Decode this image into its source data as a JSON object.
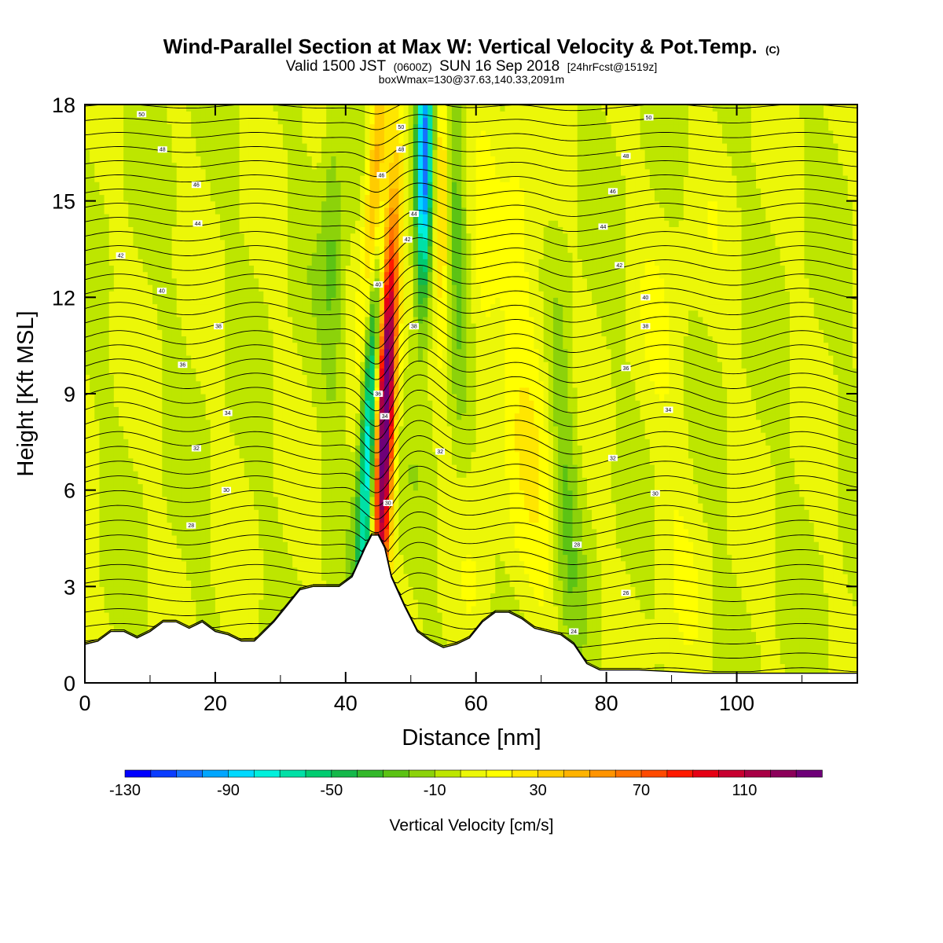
{
  "chart_data": {
    "type": "heatmap",
    "title": "Wind-Parallel Section at Max W: Vertical Velocity & Pot.Temp.",
    "title_suffix": "(C)",
    "subtitle_parts": [
      "Valid 1500 JST",
      "(0600Z)",
      "SUN 16 Sep 2018",
      "[24hrFcst@1519z]"
    ],
    "subtitle2": "boxWmax=130@37.63,140.33,2091m",
    "xlabel": "Distance [nm]",
    "ylabel": "Height [Kft MSL]",
    "xlim": [
      0,
      118.5
    ],
    "ylim": [
      0,
      18
    ],
    "x_ticks": [
      "0",
      "20",
      "40",
      "60",
      "80",
      "100"
    ],
    "x_tick_values": [
      0,
      20,
      40,
      60,
      80,
      100
    ],
    "y_ticks": [
      "0",
      "3",
      "6",
      "9",
      "12",
      "15",
      "18"
    ],
    "y_tick_values": [
      0,
      3,
      6,
      9,
      12,
      15,
      18
    ],
    "colorbar": {
      "title": "Vertical Velocity [cm/s]",
      "labels": [
        "-130",
        "-90",
        "-50",
        "-10",
        "30",
        "70",
        "110"
      ],
      "label_values": [
        -130,
        -90,
        -50,
        -10,
        30,
        70,
        110
      ],
      "min": -130,
      "max": 140,
      "step": 10,
      "colors": [
        "#0000ff",
        "#0a3cff",
        "#1473ff",
        "#00a6ff",
        "#00d9ff",
        "#00f0dc",
        "#00e0a6",
        "#00cc70",
        "#14b84a",
        "#33b82a",
        "#5cc314",
        "#8cd20a",
        "#bde600",
        "#ecf708",
        "#ffff00",
        "#ffe600",
        "#ffcc00",
        "#ffb300",
        "#ff9400",
        "#ff7300",
        "#ff4a00",
        "#ff1a00",
        "#e60014",
        "#c80030",
        "#a80045",
        "#8c005a",
        "#6e0078"
      ]
    },
    "terrain_kft": [
      [
        0,
        1.2
      ],
      [
        2,
        1.3
      ],
      [
        4,
        1.6
      ],
      [
        6,
        1.6
      ],
      [
        8,
        1.4
      ],
      [
        10,
        1.6
      ],
      [
        12,
        1.9
      ],
      [
        14,
        1.9
      ],
      [
        16,
        1.7
      ],
      [
        18,
        1.9
      ],
      [
        20,
        1.6
      ],
      [
        22,
        1.5
      ],
      [
        24,
        1.3
      ],
      [
        26,
        1.3
      ],
      [
        27,
        1.5
      ],
      [
        29,
        1.9
      ],
      [
        31,
        2.4
      ],
      [
        33,
        2.9
      ],
      [
        35,
        3.0
      ],
      [
        37,
        3.0
      ],
      [
        39,
        3.0
      ],
      [
        41,
        3.3
      ],
      [
        43,
        4.2
      ],
      [
        44,
        4.6
      ],
      [
        45,
        4.6
      ],
      [
        46,
        4.2
      ],
      [
        47,
        3.3
      ],
      [
        49,
        2.4
      ],
      [
        51,
        1.6
      ],
      [
        53,
        1.3
      ],
      [
        55,
        1.1
      ],
      [
        57,
        1.2
      ],
      [
        59,
        1.4
      ],
      [
        61,
        1.9
      ],
      [
        63,
        2.2
      ],
      [
        65,
        2.2
      ],
      [
        67,
        2.0
      ],
      [
        69,
        1.7
      ],
      [
        71,
        1.6
      ],
      [
        73,
        1.5
      ],
      [
        75,
        1.2
      ],
      [
        77,
        0.6
      ],
      [
        79,
        0.4
      ],
      [
        85,
        0.4
      ],
      [
        95,
        0.3
      ],
      [
        105,
        0.3
      ],
      [
        118.5,
        0.3
      ]
    ],
    "w_features": [
      {
        "x0": 45.5,
        "drift": 0.18,
        "z_center": 8.5,
        "z_sigma": 4.5,
        "width": 1.0,
        "amp": 150
      },
      {
        "x0": 43.0,
        "drift": 0.2,
        "z_center": 8.0,
        "z_sigma": 4.5,
        "width": 0.9,
        "amp": -90
      },
      {
        "x0": 42.0,
        "drift": 0.25,
        "z_center": 15.0,
        "z_sigma": 3.0,
        "width": 1.0,
        "amp": 70
      },
      {
        "x0": 51.5,
        "drift": 0.05,
        "z_center": 16.0,
        "z_sigma": 3.0,
        "width": 0.9,
        "amp": -110
      },
      {
        "x0": 55.5,
        "drift": -0.05,
        "z_center": 16.0,
        "z_sigma": 3.5,
        "width": 1.0,
        "amp": 45
      },
      {
        "x0": 57.5,
        "drift": -0.1,
        "z_center": 14.0,
        "z_sigma": 3.5,
        "width": 1.2,
        "amp": -30
      },
      {
        "x0": 38.0,
        "drift": 0.0,
        "z_center": 14.0,
        "z_sigma": 4.0,
        "width": 1.2,
        "amp": -20
      },
      {
        "x0": 74.0,
        "drift": -0.2,
        "z_center": 7.0,
        "z_sigma": 4.0,
        "width": 1.5,
        "amp": -20
      },
      {
        "x0": 70.0,
        "drift": -0.2,
        "z_center": 9.0,
        "z_sigma": 5.0,
        "width": 2.0,
        "amp": 18
      },
      {
        "x0": 61.0,
        "drift": 0.0,
        "z_center": 10.0,
        "z_sigma": 5.0,
        "width": 1.5,
        "amp": 12
      },
      {
        "x0": 90.0,
        "drift": 0.0,
        "z_center": 8.0,
        "z_sigma": 6.0,
        "width": 3.5,
        "amp": 6
      },
      {
        "x0": 66.0,
        "drift": 0.0,
        "z_center": 11.0,
        "z_sigma": 5.0,
        "width": 1.5,
        "amp": 10
      }
    ],
    "contour_labels": [
      {
        "text": "50",
        "x": 8.7,
        "z": 17.7
      },
      {
        "text": "48",
        "x": 11.9,
        "z": 16.6
      },
      {
        "text": "46",
        "x": 17.1,
        "z": 15.5
      },
      {
        "text": "44",
        "x": 17.3,
        "z": 14.3
      },
      {
        "text": "42",
        "x": 5.5,
        "z": 13.3
      },
      {
        "text": "40",
        "x": 11.8,
        "z": 12.2
      },
      {
        "text": "38",
        "x": 20.5,
        "z": 11.1
      },
      {
        "text": "36",
        "x": 15.0,
        "z": 9.9
      },
      {
        "text": "34",
        "x": 21.9,
        "z": 8.4
      },
      {
        "text": "32",
        "x": 17.1,
        "z": 7.3
      },
      {
        "text": "30",
        "x": 21.7,
        "z": 6.0
      },
      {
        "text": "28",
        "x": 16.3,
        "z": 4.9
      },
      {
        "text": "50",
        "x": 48.5,
        "z": 17.3
      },
      {
        "text": "48",
        "x": 48.5,
        "z": 16.6
      },
      {
        "text": "46",
        "x": 45.5,
        "z": 15.8
      },
      {
        "text": "44",
        "x": 50.5,
        "z": 14.6
      },
      {
        "text": "42",
        "x": 49.5,
        "z": 13.8
      },
      {
        "text": "40",
        "x": 45.0,
        "z": 12.4
      },
      {
        "text": "38",
        "x": 50.5,
        "z": 11.1
      },
      {
        "text": "36",
        "x": 45.0,
        "z": 9.0
      },
      {
        "text": "34",
        "x": 46.0,
        "z": 8.3
      },
      {
        "text": "32",
        "x": 54.5,
        "z": 7.2
      },
      {
        "text": "30",
        "x": 46.5,
        "z": 5.6
      },
      {
        "text": "50",
        "x": 86.5,
        "z": 17.6
      },
      {
        "text": "48",
        "x": 83.0,
        "z": 16.4
      },
      {
        "text": "46",
        "x": 81.0,
        "z": 15.3
      },
      {
        "text": "44",
        "x": 79.5,
        "z": 14.2
      },
      {
        "text": "42",
        "x": 82.0,
        "z": 13.0
      },
      {
        "text": "40",
        "x": 86.0,
        "z": 12.0
      },
      {
        "text": "38",
        "x": 86.0,
        "z": 11.1
      },
      {
        "text": "36",
        "x": 83.0,
        "z": 9.8
      },
      {
        "text": "34",
        "x": 89.5,
        "z": 8.5
      },
      {
        "text": "32",
        "x": 81.0,
        "z": 7.0
      },
      {
        "text": "30",
        "x": 87.5,
        "z": 5.9
      },
      {
        "text": "28",
        "x": 75.5,
        "z": 4.3
      },
      {
        "text": "26",
        "x": 83.0,
        "z": 2.8
      },
      {
        "text": "24",
        "x": 75.0,
        "z": 1.6
      }
    ]
  }
}
